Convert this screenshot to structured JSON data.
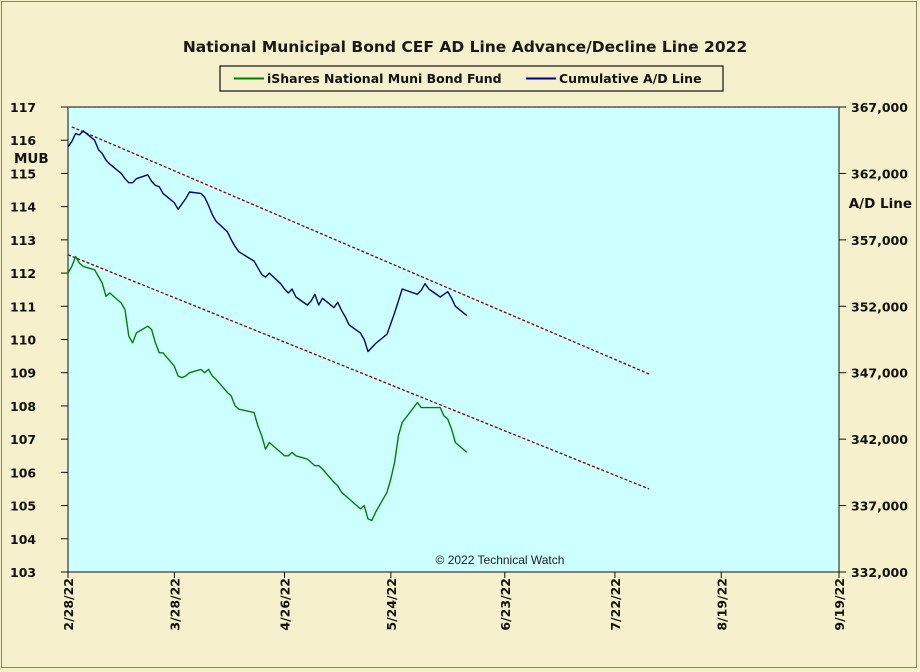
{
  "chart_data": {
    "type": "line",
    "title": "National Municipal Bond CEF AD Line Advance/Decline Line 2022",
    "copyright": "© 2022 Technical Watch",
    "y_left": {
      "label": "MUB",
      "range": [
        103,
        117
      ],
      "ticks": [
        "103",
        "104",
        "105",
        "106",
        "107",
        "108",
        "109",
        "110",
        "111",
        "112",
        "113",
        "114",
        "115",
        "116",
        "117"
      ]
    },
    "y_right": {
      "label": "A/D Line",
      "range": [
        332000,
        367000
      ],
      "ticks": [
        "332,000",
        "337,000",
        "342,000",
        "347,000",
        "352,000",
        "357,000",
        "362,000",
        "367,000"
      ]
    },
    "x_axis": {
      "range": [
        "2022-02-28",
        "2022-09-19"
      ],
      "ticks": [
        "2/28/22",
        "3/28/22",
        "4/26/22",
        "5/24/22",
        "6/23/22",
        "7/22/22",
        "8/19/22",
        "9/19/22"
      ],
      "tick_dates": [
        "2022-02-28",
        "2022-03-28",
        "2022-04-26",
        "2022-05-24",
        "2022-06-23",
        "2022-07-22",
        "2022-08-19",
        "2022-09-19"
      ]
    },
    "legend": {
      "placement": "top-center",
      "entries": [
        "iShares National Muni Bond Fund",
        "Cumulative A/D Line"
      ]
    },
    "colors": {
      "plot_background": "#ccffff",
      "frame_background": "#f6f1cc",
      "mub_line": "#008000",
      "ad_line": "#000080",
      "trendline": "#800000"
    },
    "series": [
      {
        "name": "iShares National Muni Bond Fund",
        "axis": "left",
        "points": [
          [
            "2022-02-28",
            112.0
          ],
          [
            "2022-03-01",
            112.2
          ],
          [
            "2022-03-02",
            112.5
          ],
          [
            "2022-03-03",
            112.3
          ],
          [
            "2022-03-04",
            112.2
          ],
          [
            "2022-03-07",
            112.1
          ],
          [
            "2022-03-08",
            111.9
          ],
          [
            "2022-03-09",
            111.7
          ],
          [
            "2022-03-10",
            111.3
          ],
          [
            "2022-03-11",
            111.4
          ],
          [
            "2022-03-14",
            111.1
          ],
          [
            "2022-03-15",
            110.9
          ],
          [
            "2022-03-16",
            110.1
          ],
          [
            "2022-03-17",
            109.9
          ],
          [
            "2022-03-18",
            110.2
          ],
          [
            "2022-03-21",
            110.4
          ],
          [
            "2022-03-22",
            110.3
          ],
          [
            "2022-03-23",
            109.9
          ],
          [
            "2022-03-24",
            109.6
          ],
          [
            "2022-03-25",
            109.6
          ],
          [
            "2022-03-28",
            109.2
          ],
          [
            "2022-03-29",
            108.9
          ],
          [
            "2022-03-30",
            108.85
          ],
          [
            "2022-03-31",
            108.9
          ],
          [
            "2022-04-01",
            109.0
          ],
          [
            "2022-04-04",
            109.1
          ],
          [
            "2022-04-05",
            109.0
          ],
          [
            "2022-04-06",
            109.1
          ],
          [
            "2022-04-07",
            108.9
          ],
          [
            "2022-04-08",
            108.8
          ],
          [
            "2022-04-11",
            108.4
          ],
          [
            "2022-04-12",
            108.3
          ],
          [
            "2022-04-13",
            108.0
          ],
          [
            "2022-04-14",
            107.9
          ],
          [
            "2022-04-18",
            107.8
          ],
          [
            "2022-04-19",
            107.4
          ],
          [
            "2022-04-20",
            107.1
          ],
          [
            "2022-04-21",
            106.7
          ],
          [
            "2022-04-22",
            106.9
          ],
          [
            "2022-04-25",
            106.6
          ],
          [
            "2022-04-26",
            106.5
          ],
          [
            "2022-04-27",
            106.5
          ],
          [
            "2022-04-28",
            106.6
          ],
          [
            "2022-04-29",
            106.5
          ],
          [
            "2022-05-02",
            106.4
          ],
          [
            "2022-05-03",
            106.3
          ],
          [
            "2022-05-04",
            106.2
          ],
          [
            "2022-05-05",
            106.2
          ],
          [
            "2022-05-06",
            106.1
          ],
          [
            "2022-05-09",
            105.7
          ],
          [
            "2022-05-10",
            105.6
          ],
          [
            "2022-05-11",
            105.4
          ],
          [
            "2022-05-12",
            105.3
          ],
          [
            "2022-05-13",
            105.2
          ],
          [
            "2022-05-16",
            104.9
          ],
          [
            "2022-05-17",
            105.0
          ],
          [
            "2022-05-18",
            104.6
          ],
          [
            "2022-05-19",
            104.55
          ],
          [
            "2022-05-20",
            104.8
          ],
          [
            "2022-05-23",
            105.4
          ],
          [
            "2022-05-24",
            105.8
          ],
          [
            "2022-05-25",
            106.3
          ],
          [
            "2022-05-26",
            107.1
          ],
          [
            "2022-05-27",
            107.5
          ],
          [
            "2022-05-31",
            108.1
          ],
          [
            "2022-06-01",
            107.95
          ],
          [
            "2022-06-02",
            107.95
          ],
          [
            "2022-06-03",
            107.95
          ],
          [
            "2022-06-06",
            107.95
          ],
          [
            "2022-06-07",
            107.7
          ],
          [
            "2022-06-08",
            107.6
          ],
          [
            "2022-06-09",
            107.3
          ],
          [
            "2022-06-10",
            106.9
          ],
          [
            "2022-06-13",
            106.6
          ]
        ]
      },
      {
        "name": "Cumulative A/D Line",
        "axis": "right",
        "points": [
          [
            "2022-02-28",
            364.0
          ],
          [
            "2022-03-01",
            364.4
          ],
          [
            "2022-03-02",
            365.0
          ],
          [
            "2022-03-03",
            364.9
          ],
          [
            "2022-03-04",
            365.2
          ],
          [
            "2022-03-07",
            364.5
          ],
          [
            "2022-03-08",
            363.8
          ],
          [
            "2022-03-09",
            363.5
          ],
          [
            "2022-03-10",
            363.0
          ],
          [
            "2022-03-11",
            362.7
          ],
          [
            "2022-03-14",
            362.0
          ],
          [
            "2022-03-15",
            361.6
          ],
          [
            "2022-03-16",
            361.3
          ],
          [
            "2022-03-17",
            361.3
          ],
          [
            "2022-03-18",
            361.6
          ],
          [
            "2022-03-21",
            361.9
          ],
          [
            "2022-03-22",
            361.4
          ],
          [
            "2022-03-23",
            361.1
          ],
          [
            "2022-03-24",
            361.0
          ],
          [
            "2022-03-25",
            360.5
          ],
          [
            "2022-03-28",
            359.8
          ],
          [
            "2022-03-29",
            359.3
          ],
          [
            "2022-03-30",
            359.7
          ],
          [
            "2022-03-31",
            360.1
          ],
          [
            "2022-04-01",
            360.6
          ],
          [
            "2022-04-04",
            360.5
          ],
          [
            "2022-04-05",
            360.2
          ],
          [
            "2022-04-06",
            359.6
          ],
          [
            "2022-04-07",
            358.9
          ],
          [
            "2022-04-08",
            358.4
          ],
          [
            "2022-04-11",
            357.6
          ],
          [
            "2022-04-12",
            357.0
          ],
          [
            "2022-04-13",
            356.5
          ],
          [
            "2022-04-14",
            356.1
          ],
          [
            "2022-04-18",
            355.4
          ],
          [
            "2022-04-19",
            354.9
          ],
          [
            "2022-04-20",
            354.4
          ],
          [
            "2022-04-21",
            354.2
          ],
          [
            "2022-04-22",
            354.5
          ],
          [
            "2022-04-25",
            353.7
          ],
          [
            "2022-04-26",
            353.3
          ],
          [
            "2022-04-27",
            353.0
          ],
          [
            "2022-04-28",
            353.3
          ],
          [
            "2022-04-29",
            352.7
          ],
          [
            "2022-05-02",
            352.1
          ],
          [
            "2022-05-03",
            352.4
          ],
          [
            "2022-05-04",
            352.9
          ],
          [
            "2022-05-05",
            352.1
          ],
          [
            "2022-05-06",
            352.6
          ],
          [
            "2022-05-09",
            351.9
          ],
          [
            "2022-05-10",
            352.3
          ],
          [
            "2022-05-11",
            351.7
          ],
          [
            "2022-05-12",
            351.2
          ],
          [
            "2022-05-13",
            350.6
          ],
          [
            "2022-05-16",
            350.0
          ],
          [
            "2022-05-17",
            349.5
          ],
          [
            "2022-05-18",
            348.6
          ],
          [
            "2022-05-19",
            348.9
          ],
          [
            "2022-05-20",
            349.2
          ],
          [
            "2022-05-23",
            349.9
          ],
          [
            "2022-05-24",
            350.7
          ],
          [
            "2022-05-25",
            351.5
          ],
          [
            "2022-05-26",
            352.4
          ],
          [
            "2022-05-27",
            353.3
          ],
          [
            "2022-05-31",
            352.9
          ],
          [
            "2022-06-01",
            353.2
          ],
          [
            "2022-06-02",
            353.7
          ],
          [
            "2022-06-03",
            353.3
          ],
          [
            "2022-06-06",
            352.7
          ],
          [
            "2022-06-07",
            352.9
          ],
          [
            "2022-06-08",
            353.1
          ],
          [
            "2022-06-09",
            352.6
          ],
          [
            "2022-06-10",
            352.0
          ],
          [
            "2022-06-13",
            351.3
          ]
        ]
      }
    ],
    "trendlines": [
      {
        "axis": "right",
        "start": [
          "2022-03-01",
          365.5
        ],
        "end": [
          "2022-07-31",
          346.9
        ]
      },
      {
        "axis": "left",
        "start": [
          "2022-02-28",
          112.55
        ],
        "end": [
          "2022-07-31",
          105.5
        ]
      }
    ],
    "reference_line": {
      "axis": "left",
      "value": 117
    }
  }
}
